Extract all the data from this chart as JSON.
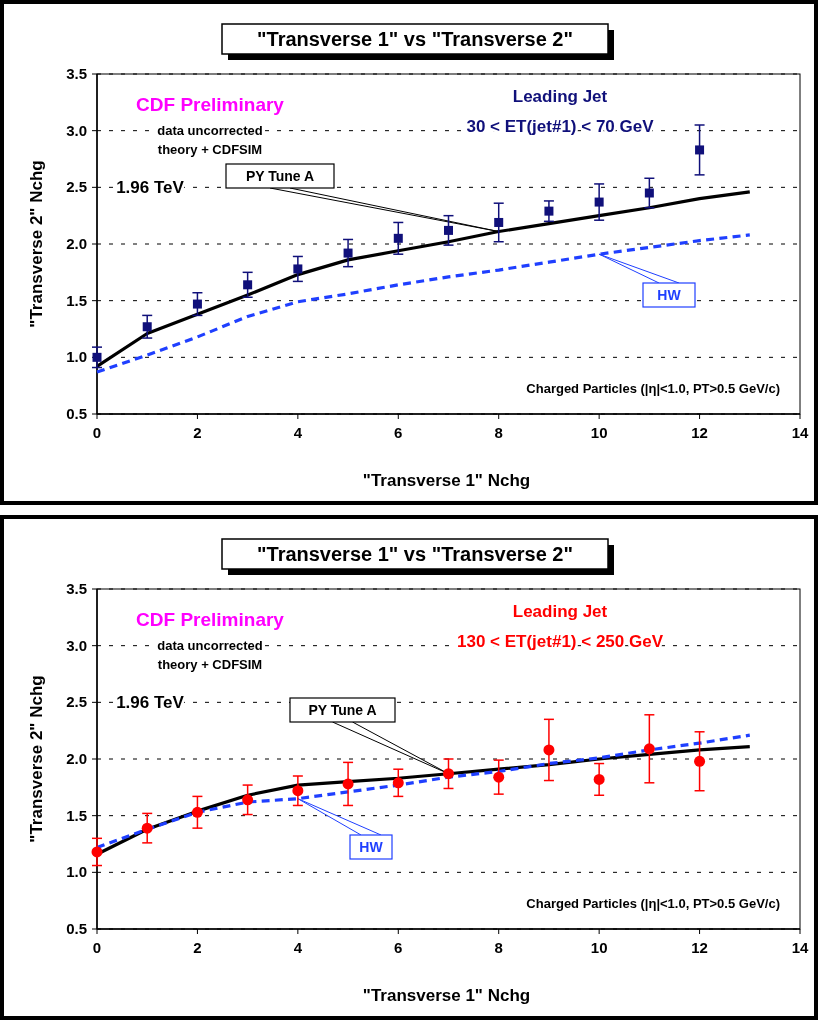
{
  "chart_data": [
    {
      "type": "line",
      "title": "\"Transverse 1\" vs \"Transverse 2\"",
      "xlabel": "\"Transverse 1\" Nchg",
      "ylabel": "\"Transverse 2\" Nchg",
      "xlim": [
        0,
        14
      ],
      "xticks": [
        0,
        2,
        4,
        6,
        8,
        10,
        12,
        14
      ],
      "ylim": [
        0.5,
        3.5
      ],
      "yticks": [
        {
          "value": 0.5,
          "label": "0.5"
        },
        {
          "value": 1,
          "label": "1.0"
        },
        {
          "value": 1.5,
          "label": "1.5"
        },
        {
          "value": 2,
          "label": "2.0"
        },
        {
          "value": 2.5,
          "label": "2.5"
        },
        {
          "value": 3,
          "label": "3.0"
        },
        {
          "value": 3.5,
          "label": "3.5"
        }
      ],
      "grid": "y",
      "legend": false,
      "annotations": [
        "CDF Preliminary",
        "data uncorrected",
        "theory + CDFSIM",
        "1.96 TeV",
        "Leading Jet",
        "30 < ET(jet#1) < 70 GeV",
        "Charged Particles (|η|<1.0, PT>0.5 GeV/c)"
      ],
      "series": [
        {
          "type": "scatter",
          "marker": "square",
          "color": "#10107a",
          "x": [
            0,
            1,
            2,
            3,
            4,
            5,
            6,
            7,
            8,
            9,
            10,
            11,
            12
          ],
          "values": [
            1.0,
            1.27,
            1.47,
            1.64,
            1.78,
            1.92,
            2.05,
            2.12,
            2.19,
            2.29,
            2.37,
            2.45,
            2.83
          ],
          "errors": [
            0.09,
            0.1,
            0.1,
            0.11,
            0.11,
            0.12,
            0.14,
            0.13,
            0.17,
            0.09,
            0.16,
            0.13,
            0.22
          ]
        },
        {
          "type": "line",
          "name": "PY Tune A",
          "line_style": "solid",
          "color": "#000000",
          "x": [
            0,
            1,
            2,
            3,
            4,
            5,
            6,
            7,
            8,
            9,
            10,
            11,
            12,
            13
          ],
          "values": [
            0.92,
            1.21,
            1.38,
            1.55,
            1.73,
            1.86,
            1.94,
            2.02,
            2.11,
            2.18,
            2.25,
            2.32,
            2.4,
            2.46
          ]
        },
        {
          "type": "line",
          "name": "HW",
          "line_style": "dashed",
          "color": "#1f3fff",
          "x": [
            0,
            1,
            2,
            3,
            4,
            5,
            6,
            7,
            8,
            9,
            10,
            11,
            12,
            13
          ],
          "values": [
            0.87,
            1.02,
            1.18,
            1.36,
            1.49,
            1.56,
            1.64,
            1.71,
            1.77,
            1.84,
            1.91,
            1.97,
            2.03,
            2.08
          ]
        }
      ]
    },
    {
      "type": "line",
      "title": "\"Transverse 1\" vs \"Transverse 2\"",
      "xlabel": "\"Transverse 1\" Nchg",
      "ylabel": "\"Transverse 2\" Nchg",
      "xlim": [
        0,
        14
      ],
      "xticks": [
        0,
        2,
        4,
        6,
        8,
        10,
        12,
        14
      ],
      "ylim": [
        0.5,
        3.5
      ],
      "yticks": [
        {
          "value": 0.5,
          "label": "0.5"
        },
        {
          "value": 1,
          "label": "1.0"
        },
        {
          "value": 1.5,
          "label": "1.5"
        },
        {
          "value": 2,
          "label": "2.0"
        },
        {
          "value": 2.5,
          "label": "2.5"
        },
        {
          "value": 3,
          "label": "3.0"
        },
        {
          "value": 3.5,
          "label": "3.5"
        }
      ],
      "grid": "y",
      "legend": false,
      "annotations": [
        "CDF Preliminary",
        "data uncorrected",
        "theory + CDFSIM",
        "1.96 TeV",
        "Leading Jet",
        "130 < ET(jet#1) < 250 GeV",
        "Charged Particles (|η|<1.0, PT>0.5 GeV/c)"
      ],
      "series": [
        {
          "type": "scatter",
          "marker": "circle",
          "color": "#ff0000",
          "x": [
            0,
            1,
            2,
            3,
            4,
            5,
            6,
            7,
            8,
            9,
            10,
            11,
            12
          ],
          "values": [
            1.18,
            1.39,
            1.53,
            1.64,
            1.72,
            1.78,
            1.79,
            1.87,
            1.84,
            2.08,
            1.82,
            2.09,
            1.98
          ],
          "errors": [
            0.12,
            0.13,
            0.14,
            0.13,
            0.13,
            0.19,
            0.12,
            0.13,
            0.15,
            0.27,
            0.14,
            0.3,
            0.26
          ]
        },
        {
          "type": "line",
          "name": "PY Tune A",
          "line_style": "solid",
          "color": "#000000",
          "x": [
            0,
            1,
            2,
            3,
            4,
            5,
            6,
            7,
            8,
            9,
            10,
            11,
            12,
            13
          ],
          "values": [
            1.16,
            1.38,
            1.54,
            1.68,
            1.77,
            1.8,
            1.83,
            1.87,
            1.91,
            1.95,
            2.0,
            2.04,
            2.08,
            2.11
          ]
        },
        {
          "type": "line",
          "name": "HW",
          "line_style": "dashed",
          "color": "#1f3fff",
          "x": [
            0,
            1,
            2,
            3,
            4,
            5,
            6,
            7,
            8,
            9,
            10,
            11,
            12,
            13
          ],
          "values": [
            1.22,
            1.38,
            1.53,
            1.62,
            1.65,
            1.71,
            1.77,
            1.84,
            1.89,
            1.96,
            2.01,
            2.08,
            2.14,
            2.21
          ]
        }
      ]
    }
  ]
}
